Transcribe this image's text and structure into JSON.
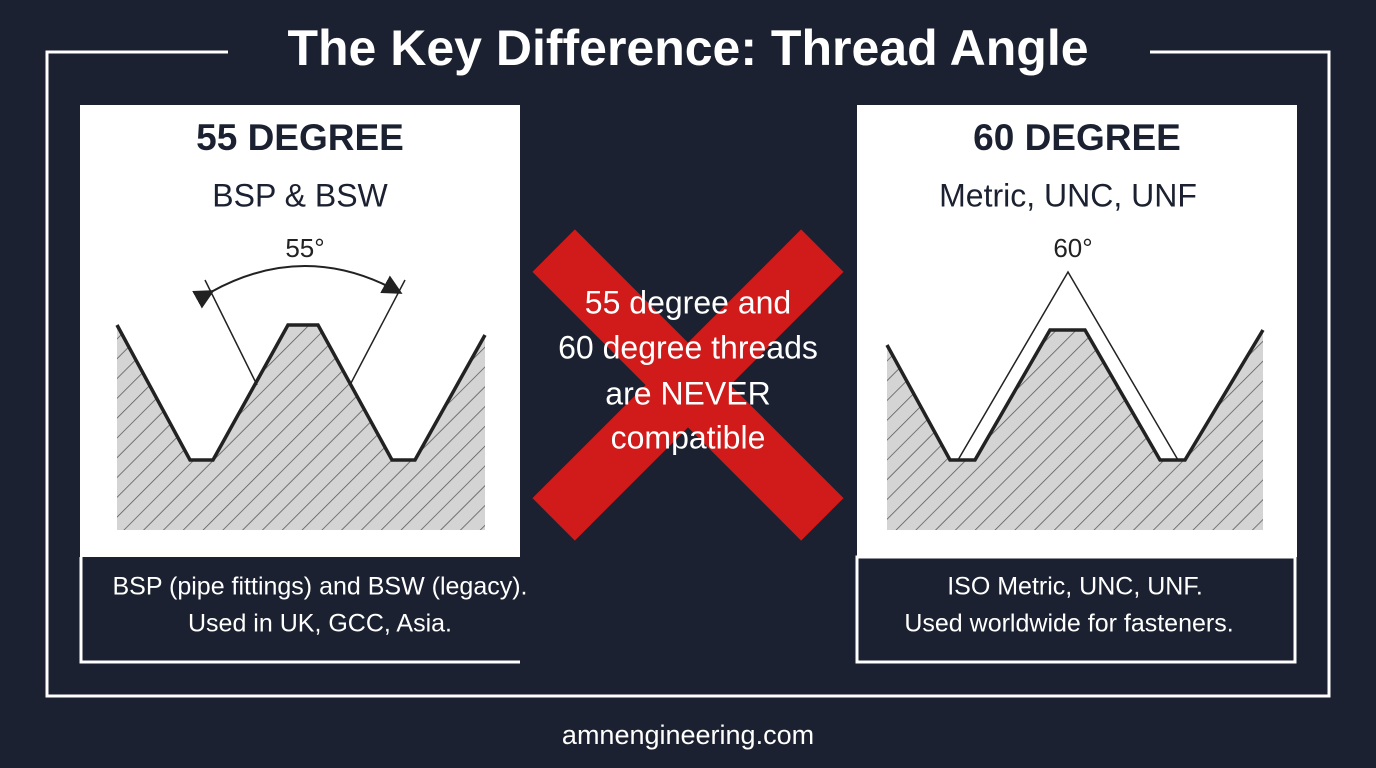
{
  "title": "The Key Difference: Thread Angle",
  "panels": [
    {
      "heading": "55 DEGREE",
      "subheading": "BSP & BSW",
      "angle_label": "55°",
      "description": [
        "BSP (pipe fittings) and BSW (legacy).",
        "Used in UK, GCC, Asia."
      ]
    },
    {
      "heading": "60 DEGREE",
      "subheading": "Metric, UNC, UNF",
      "angle_label": "60°",
      "description": [
        "ISO Metric, UNC, UNF.",
        "Used worldwide for fasteners."
      ]
    }
  ],
  "warning": [
    "55 degree and",
    "60 degree threads",
    "are NEVER",
    "compatible"
  ],
  "footer": "amnengineering.com"
}
